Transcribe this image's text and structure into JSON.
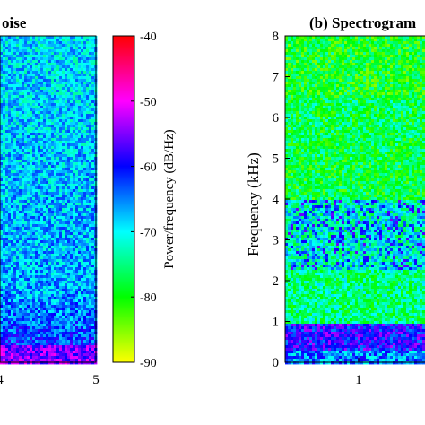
{
  "chart_data": [
    {
      "type": "heatmap",
      "title_fragment": "oise",
      "xlim": [
        0,
        5
      ],
      "x_tick_labels": [
        "4",
        "5"
      ],
      "x_ticks": [
        4,
        5
      ],
      "description_palette": "spectrogram of noise: mostly cyan/blue, denser blue/magenta band near the bottom"
    },
    {
      "type": "heatmap",
      "title": "(b) Spectrogram",
      "ylabel": "Frequency (kHz)",
      "ylim": [
        0,
        8
      ],
      "y_ticks": [
        0,
        1,
        2,
        3,
        4,
        5,
        6,
        7,
        8
      ],
      "y_tick_labels": [
        "0",
        "1",
        "2",
        "3",
        "4",
        "5",
        "6",
        "7",
        "8"
      ],
      "x_ticks": [
        1
      ],
      "x_tick_labels": [
        "1"
      ]
    }
  ],
  "colorbar": {
    "label": "Power/frequency (dB/Hz)",
    "range": [
      -90,
      -40
    ],
    "tick_labels": [
      "-40",
      "-50",
      "-60",
      "-70",
      "-80",
      "-90"
    ],
    "ticks": [
      -40,
      -50,
      -60,
      -70,
      -80,
      -90
    ],
    "colors": [
      "#ff0000",
      "#ff00ff",
      "#0000ff",
      "#00ffff",
      "#00ff00",
      "#ffff00"
    ]
  }
}
